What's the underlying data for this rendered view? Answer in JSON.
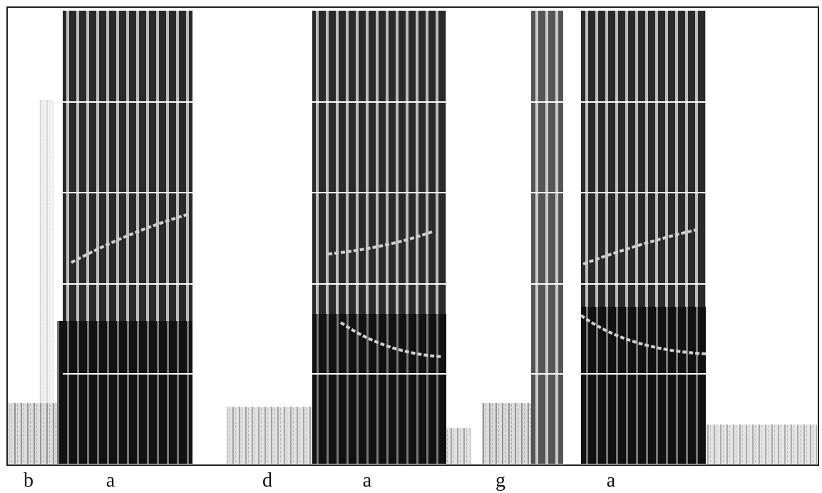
{
  "labels": [
    "b",
    "a",
    "d",
    "a",
    "g",
    "a"
  ]
}
